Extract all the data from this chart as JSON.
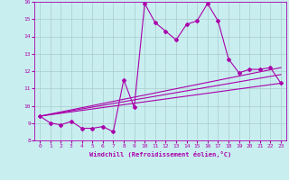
{
  "xlabel": "Windchill (Refroidissement éolien,°C)",
  "bg_color": "#c8eef0",
  "line_color": "#aa00aa",
  "grid_color": "#aacccc",
  "xlim": [
    -0.5,
    23.5
  ],
  "ylim": [
    8,
    16
  ],
  "xticks": [
    0,
    1,
    2,
    3,
    4,
    5,
    6,
    7,
    8,
    9,
    10,
    11,
    12,
    13,
    14,
    15,
    16,
    17,
    18,
    19,
    20,
    21,
    22,
    23
  ],
  "yticks": [
    8,
    9,
    10,
    11,
    12,
    13,
    14,
    15,
    16
  ],
  "main_x": [
    0,
    1,
    2,
    3,
    4,
    5,
    6,
    7,
    8,
    9,
    10,
    11,
    12,
    13,
    14,
    15,
    16,
    17,
    18,
    19,
    20,
    21,
    22,
    23
  ],
  "main_y": [
    9.4,
    9.0,
    8.9,
    9.1,
    8.7,
    8.7,
    8.8,
    8.5,
    11.5,
    9.9,
    15.9,
    14.8,
    14.3,
    13.8,
    14.7,
    14.9,
    15.9,
    14.9,
    12.7,
    11.9,
    12.1,
    12.1,
    12.2,
    11.3
  ],
  "line2_x": [
    0,
    23
  ],
  "line2_y": [
    9.4,
    11.3
  ],
  "line3_x": [
    0,
    23
  ],
  "line3_y": [
    9.4,
    11.8
  ],
  "line4_x": [
    0,
    23
  ],
  "line4_y": [
    9.4,
    12.2
  ],
  "marker": "D",
  "markersize": 2.0,
  "linewidth": 0.8
}
